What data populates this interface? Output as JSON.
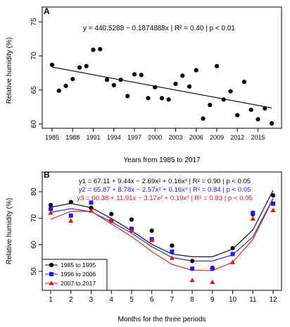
{
  "chart_data": [
    {
      "panel": "A",
      "type": "scatter",
      "xlabel": "Years from 1985 to 2017",
      "ylabel": "Relative humidity (%)",
      "xlim": [
        1985,
        2017
      ],
      "ylim": [
        60,
        75
      ],
      "xticks": [
        1985,
        1988,
        1991,
        1994,
        1997,
        2000,
        2003,
        2006,
        2009,
        2012,
        2015
      ],
      "yticks": [
        60,
        65,
        70,
        75
      ],
      "grid": false,
      "annotation": "y = 440.5288 − 0.1874888x | R² = 0.40 | p < 0.01",
      "trendline": {
        "slope": -0.1874888,
        "intercept": 440.5288,
        "x_range": [
          1985,
          2017
        ]
      },
      "points": {
        "x": [
          1985,
          1986,
          1987,
          1988,
          1989,
          1990,
          1991,
          1992,
          1993,
          1994,
          1995,
          1996,
          1997,
          1998,
          1999,
          2000,
          2001,
          2002,
          2003,
          2004,
          2005,
          2006,
          2007,
          2008,
          2009,
          2010,
          2011,
          2012,
          2013,
          2014,
          2015,
          2016,
          2017
        ],
        "y": [
          68.7,
          64.9,
          65.6,
          66.6,
          68.3,
          68.5,
          70.9,
          71.0,
          66.5,
          65.7,
          66.5,
          64.1,
          67.3,
          67.2,
          63.8,
          65.4,
          63.8,
          63.6,
          65.9,
          67.1,
          65.5,
          67.9,
          60.8,
          62.8,
          68.5,
          63.6,
          64.8,
          61.3,
          66.2,
          62.1,
          60.7,
          62.3,
          60.1
        ]
      }
    },
    {
      "panel": "B",
      "type": "line",
      "xlabel": "Months for the three periods",
      "ylabel": "Relative humidity (%)",
      "xlim": [
        1,
        12
      ],
      "ylim": [
        50,
        80
      ],
      "xticks": [
        1,
        2,
        3,
        4,
        5,
        6,
        7,
        8,
        9,
        10,
        11,
        12
      ],
      "yticks": [
        50,
        60,
        70,
        80
      ],
      "grid": false,
      "legend_position": "bottom-left",
      "equations": [
        {
          "text": "y1 = 67.11 + 9.44x − 2.69x² + 0.16x³ | R² = 0.90 | p < 0.05",
          "color": "#000000"
        },
        {
          "text": "y2 = 65.87 + 8.78x − 2.57x² + 0.16x³ | R² = 0.84 | p < 0.05",
          "color": "#1a1aff"
        },
        {
          "text": "y3 = 60.38 + 11.91x − 3.17x² + 0.19x³ | R² = 0.83 | p < 0.05",
          "color": "#ee1111"
        }
      ],
      "series": [
        {
          "name": "1985 to 1995",
          "color": "#000000",
          "marker": "circle",
          "x": [
            1,
            2,
            3,
            4,
            5,
            6,
            7,
            8,
            9,
            10,
            11,
            12
          ],
          "observed": [
            75.0,
            76.1,
            73.9,
            71.6,
            69.5,
            65.3,
            59.7,
            53.9,
            51.3,
            58.7,
            71.5,
            78.6
          ],
          "fitted": [
            74.1,
            75.6,
            74.0,
            69.9,
            65.3,
            60.2,
            56.5,
            55.5,
            55.5,
            58.4,
            65.6,
            80.5
          ]
        },
        {
          "name": "1996 to 2006",
          "color": "#1a1aff",
          "marker": "square",
          "x": [
            1,
            2,
            3,
            4,
            5,
            6,
            7,
            8,
            9,
            10,
            11,
            12
          ],
          "observed": [
            73.5,
            71.0,
            75.9,
            69.0,
            66.0,
            62.1,
            57.4,
            51.0,
            51.0,
            56.5,
            72.0,
            75.5
          ],
          "fitted": [
            72.2,
            73.6,
            72.5,
            68.7,
            64.4,
            59.3,
            55.2,
            53.9,
            53.9,
            56.2,
            63.0,
            77.5
          ]
        },
        {
          "name": "2007 to 2017",
          "color": "#ee1111",
          "marker": "triangle",
          "x": [
            1,
            2,
            3,
            4,
            5,
            6,
            7,
            8,
            9,
            10,
            11,
            12
          ],
          "observed": [
            72.0,
            69.0,
            72.8,
            69.0,
            65.3,
            61.7,
            55.0,
            46.6,
            45.9,
            53.4,
            69.8,
            73.0
          ],
          "fitted": [
            69.6,
            72.6,
            72.6,
            67.9,
            63.1,
            57.5,
            52.6,
            50.4,
            50.3,
            53.4,
            62.0,
            77.3
          ]
        }
      ]
    }
  ]
}
